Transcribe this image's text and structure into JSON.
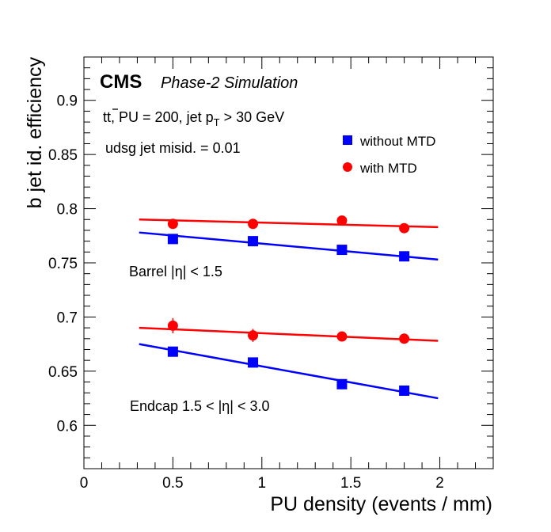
{
  "chart_data": {
    "type": "scatter",
    "xlabel": "PU density (events / mm)",
    "ylabel": "b jet id. efficiency",
    "xlim": [
      0,
      2.3
    ],
    "ylim": [
      0.56,
      0.94
    ],
    "x_ticks": [
      "0",
      "0.5",
      "1",
      "1.5",
      "2"
    ],
    "y_ticks": [
      "0.6",
      "0.65",
      "0.7",
      "0.75",
      "0.8",
      "0.85",
      "0.9"
    ],
    "grid": false,
    "legend_position": "top-right",
    "cms_label": "CMS",
    "cms_sublabel": "Phase-2 Simulation",
    "info_lines": {
      "process_prefix": "t",
      "process_bar": "t",
      "conditions": ", PU = 200, jet p",
      "subscript": "T",
      "threshold": " > 30 GeV"
    },
    "misid_label": "udsg jet misid. = 0.01",
    "region_labels": {
      "barrel": "Barrel |η| < 1.5",
      "endcap": "Endcap 1.5 < |η| < 3.0"
    },
    "series": [
      {
        "name": "without MTD",
        "region": "barrel",
        "color": "#0000ff",
        "marker": "square",
        "x": [
          0.5,
          0.95,
          1.45,
          1.8
        ],
        "y": [
          0.772,
          0.77,
          0.762,
          0.756
        ],
        "fit": {
          "x": [
            0.31,
            1.99
          ],
          "y": [
            0.778,
            0.753
          ]
        }
      },
      {
        "name": "with MTD",
        "region": "barrel",
        "color": "#ff0000",
        "marker": "circle",
        "x": [
          0.5,
          0.95,
          1.45,
          1.8
        ],
        "y": [
          0.786,
          0.786,
          0.789,
          0.782
        ],
        "err": [
          0.002,
          0.002,
          0.002,
          0.002
        ],
        "fit": {
          "x": [
            0.31,
            1.99
          ],
          "y": [
            0.79,
            0.783
          ]
        }
      },
      {
        "name": "without MTD",
        "region": "endcap",
        "color": "#0000ff",
        "marker": "square",
        "x": [
          0.5,
          0.95,
          1.45,
          1.8
        ],
        "y": [
          0.668,
          0.658,
          0.638,
          0.632
        ],
        "fit": {
          "x": [
            0.31,
            1.99
          ],
          "y": [
            0.675,
            0.625
          ]
        }
      },
      {
        "name": "with MTD",
        "region": "endcap",
        "color": "#ff0000",
        "marker": "circle",
        "x": [
          0.5,
          0.95,
          1.45,
          1.8
        ],
        "y": [
          0.692,
          0.683,
          0.682,
          0.68
        ],
        "err": [
          0.007,
          0.006,
          0.002,
          0.002
        ],
        "fit": {
          "x": [
            0.31,
            1.99
          ],
          "y": [
            0.69,
            0.678
          ]
        }
      }
    ],
    "legend": [
      {
        "label": "without MTD",
        "color": "#0000ff",
        "marker": "square"
      },
      {
        "label": "with MTD",
        "color": "#ff0000",
        "marker": "circle"
      }
    ]
  }
}
